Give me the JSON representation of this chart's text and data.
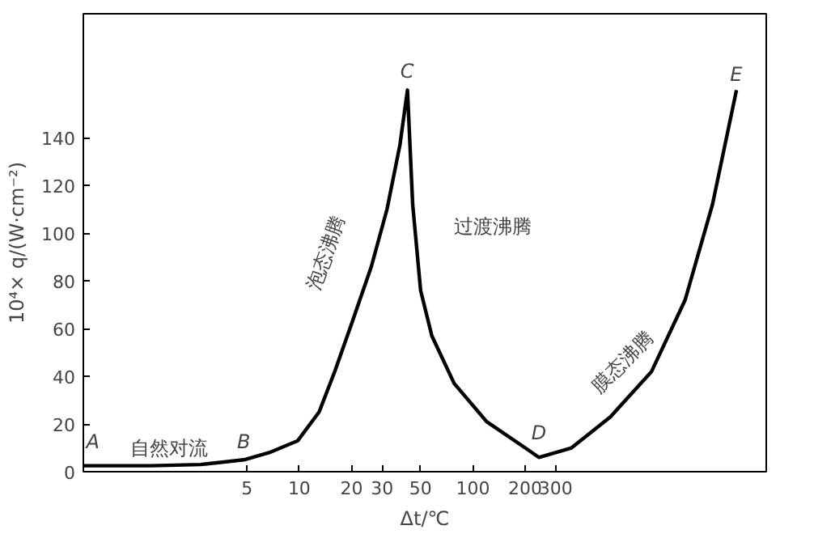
{
  "chart_data": {
    "type": "line",
    "xlabel": "Δt/℃",
    "ylabel": "10⁴× q/(W·cm⁻²)",
    "log": "x",
    "grid": false,
    "marker": "none",
    "line_style": "solid",
    "x": [
      0.57,
      1.4,
      2.7,
      4.8,
      6.7,
      9.8,
      13,
      16,
      20,
      26,
      32,
      38,
      42,
      45,
      50,
      58,
      78,
      120,
      200,
      240,
      370,
      620,
      1070,
      1670,
      2400,
      3300
    ],
    "series": [
      {
        "color": "#000000",
        "values": [
          2.5,
          2.5,
          3,
          5,
          8,
          13,
          25,
          42,
          62,
          86,
          110,
          137,
          160,
          112,
          76,
          57,
          37,
          21,
          10,
          6,
          10,
          23,
          42,
          72,
          112,
          160
        ]
      }
    ],
    "xlim": [
      0.57,
      4900
    ],
    "ylim": [
      0,
      192
    ],
    "xticks": [
      5,
      10,
      20,
      30,
      50,
      100,
      200,
      300
    ],
    "yticks": [
      0,
      20,
      40,
      60,
      80,
      100,
      120,
      140
    ],
    "annotations": [
      "A",
      "自然对流",
      "B",
      "泡态沸腾",
      "C",
      "过渡沸腾",
      "D",
      "膜态沸腾",
      "E"
    ]
  }
}
